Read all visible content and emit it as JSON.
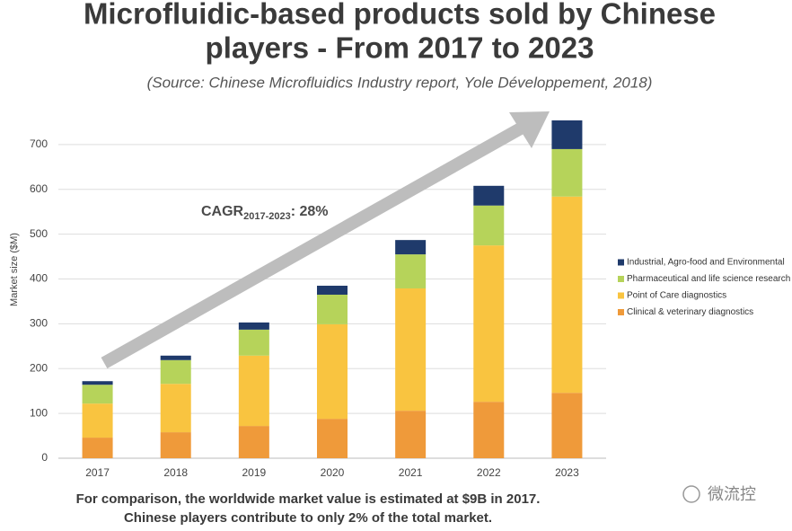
{
  "chart_data": {
    "type": "stacked-bar",
    "title": [
      "Microfluidic-based products sold by Chinese",
      "players - From 2017 to 2023"
    ],
    "subtitle": "(Source: Chinese Microfluidics Industry report, Yole Développement, 2018)",
    "y_label": "Market size ($M)",
    "annotation": {
      "main": "CAGR",
      "sub": "2017-2023",
      "tail": ": 28%"
    },
    "note": [
      "For comparison, the worldwide market value is estimated at $9B in 2017.",
      "Chinese players contribute to only 2% of the total market."
    ],
    "watermark": "微流控",
    "categories": [
      "2017",
      "2018",
      "2019",
      "2020",
      "2021",
      "2022",
      "2023"
    ],
    "series": [
      {
        "name": "Clinical & veterinary diagnostics",
        "color": "#ef9a3a",
        "values": [
          46,
          58,
          72,
          88,
          106,
          126,
          146
        ]
      },
      {
        "name": "Point of Care diagnostics",
        "color": "#f9c440",
        "values": [
          76,
          108,
          157,
          211,
          273,
          349,
          438
        ]
      },
      {
        "name": "Pharmaceutical and life science research",
        "color": "#b6d35a",
        "values": [
          42,
          53,
          58,
          66,
          76,
          89,
          106
        ]
      },
      {
        "name": "Industrial, Agro-food and Environmental",
        "color": "#1f3a6b",
        "values": [
          8,
          10,
          16,
          20,
          32,
          44,
          64
        ]
      }
    ],
    "ylim": [
      0,
      750
    ],
    "yticks": [
      0,
      100,
      200,
      300,
      400,
      500,
      600,
      700
    ],
    "grid": true
  }
}
